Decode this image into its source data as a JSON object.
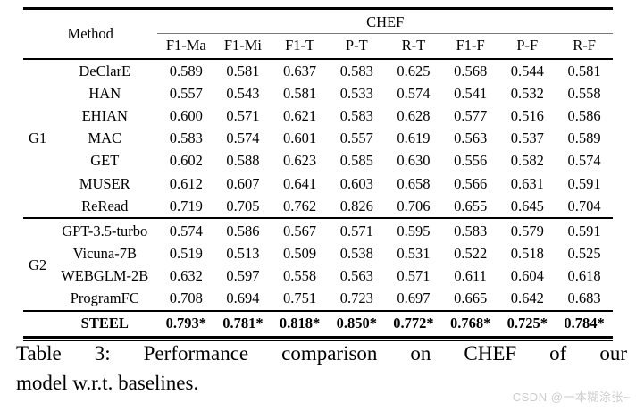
{
  "table": {
    "span_header": "CHEF",
    "method_header": "Method",
    "columns": [
      "F1-Ma",
      "F1-Mi",
      "F1-T",
      "P-T",
      "R-T",
      "F1-F",
      "P-F",
      "R-F"
    ],
    "groups": [
      {
        "label": "G1",
        "rows": [
          {
            "method": "DeClarE",
            "values": [
              "0.589",
              "0.581",
              "0.637",
              "0.583",
              "0.625",
              "0.568",
              "0.544",
              "0.581"
            ]
          },
          {
            "method": "HAN",
            "values": [
              "0.557",
              "0.543",
              "0.581",
              "0.533",
              "0.574",
              "0.541",
              "0.532",
              "0.558"
            ]
          },
          {
            "method": "EHIAN",
            "values": [
              "0.600",
              "0.571",
              "0.621",
              "0.583",
              "0.628",
              "0.577",
              "0.516",
              "0.586"
            ]
          },
          {
            "method": "MAC",
            "values": [
              "0.583",
              "0.574",
              "0.601",
              "0.557",
              "0.619",
              "0.563",
              "0.537",
              "0.589"
            ]
          },
          {
            "method": "GET",
            "values": [
              "0.602",
              "0.588",
              "0.623",
              "0.585",
              "0.630",
              "0.556",
              "0.582",
              "0.574"
            ]
          },
          {
            "method": "MUSER",
            "values": [
              "0.612",
              "0.607",
              "0.641",
              "0.603",
              "0.658",
              "0.566",
              "0.631",
              "0.591"
            ]
          },
          {
            "method": "ReRead",
            "values": [
              "0.719",
              "0.705",
              "0.762",
              "0.826",
              "0.706",
              "0.655",
              "0.645",
              "0.704"
            ]
          }
        ]
      },
      {
        "label": "G2",
        "rows": [
          {
            "method": "GPT-3.5-turbo",
            "values": [
              "0.574",
              "0.586",
              "0.567",
              "0.571",
              "0.595",
              "0.583",
              "0.579",
              "0.591"
            ]
          },
          {
            "method": "Vicuna-7B",
            "values": [
              "0.519",
              "0.513",
              "0.509",
              "0.538",
              "0.531",
              "0.522",
              "0.518",
              "0.525"
            ]
          },
          {
            "method": "WEBGLM-2B",
            "values": [
              "0.632",
              "0.597",
              "0.558",
              "0.563",
              "0.571",
              "0.611",
              "0.604",
              "0.618"
            ]
          },
          {
            "method": "ProgramFC",
            "values": [
              "0.708",
              "0.694",
              "0.751",
              "0.723",
              "0.697",
              "0.665",
              "0.642",
              "0.683"
            ]
          }
        ]
      }
    ],
    "highlight_row": {
      "method": "STEEL",
      "values": [
        "0.793*",
        "0.781*",
        "0.818*",
        "0.850*",
        "0.772*",
        "0.768*",
        "0.725*",
        "0.784*"
      ]
    }
  },
  "caption": {
    "line1": "Table 3: Performance comparison on CHEF of our",
    "line2": "model w.r.t. baselines."
  },
  "watermark": "CSDN @一本糊涂张~",
  "colors": {
    "text": "#000000",
    "rule": "#000000",
    "span_rule": "#7a7a7a",
    "watermark": "#cccccc",
    "background": "#ffffff"
  }
}
